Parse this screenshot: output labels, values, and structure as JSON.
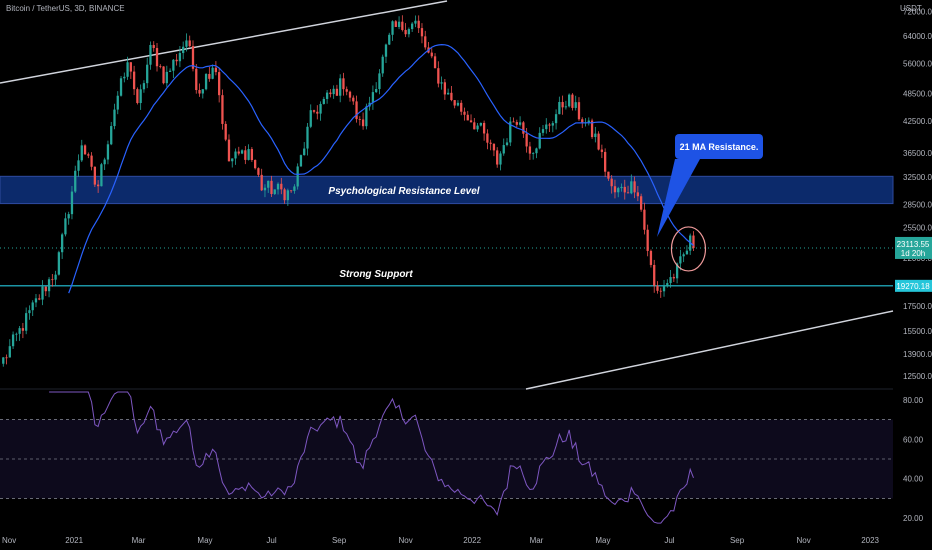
{
  "header": {
    "title": "Bitcoin / TetherUS, 3D, BINANCE",
    "quote_currency": "USDT"
  },
  "chart_data": [
    {
      "type": "candlestick",
      "scale": "log",
      "y_ticks": [
        "72000.00",
        "64000.00",
        "56000.00",
        "48500.00",
        "42500.00",
        "36500.00",
        "32500.00",
        "28500.00",
        "25500.00",
        "22000.00",
        "17500.00",
        "15500.00",
        "13900.00",
        "12500.00"
      ],
      "x_ticks": [
        "Nov",
        "2021",
        "Mar",
        "May",
        "Jul",
        "Sep",
        "Nov",
        "2022",
        "Mar",
        "May",
        "Jul",
        "Sep",
        "Nov",
        "2023"
      ],
      "ylim": [
        11800,
        76000
      ],
      "price_anchors": [
        {
          "date": "2020-10-28",
          "close": 13500
        },
        {
          "date": "2020-11-25",
          "close": 17500
        },
        {
          "date": "2020-12-16",
          "close": 21000
        },
        {
          "date": "2021-01-08",
          "close": 38500
        },
        {
          "date": "2021-01-22",
          "close": 30500
        },
        {
          "date": "2021-02-08",
          "close": 46500
        },
        {
          "date": "2021-02-21",
          "close": 57000
        },
        {
          "date": "2021-02-28",
          "close": 45000
        },
        {
          "date": "2021-03-13",
          "close": 61000
        },
        {
          "date": "2021-03-25",
          "close": 52000
        },
        {
          "date": "2021-04-14",
          "close": 63000
        },
        {
          "date": "2021-04-25",
          "close": 49000
        },
        {
          "date": "2021-05-10",
          "close": 57000
        },
        {
          "date": "2021-05-22",
          "close": 35000
        },
        {
          "date": "2021-06-10",
          "close": 37000
        },
        {
          "date": "2021-06-22",
          "close": 31000
        },
        {
          "date": "2021-07-20",
          "close": 30000
        },
        {
          "date": "2021-08-07",
          "close": 44000
        },
        {
          "date": "2021-09-06",
          "close": 51500
        },
        {
          "date": "2021-09-21",
          "close": 41000
        },
        {
          "date": "2021-10-20",
          "close": 66000
        },
        {
          "date": "2021-11-10",
          "close": 68000
        },
        {
          "date": "2021-11-28",
          "close": 54000
        },
        {
          "date": "2021-12-10",
          "close": 48000
        },
        {
          "date": "2022-01-08",
          "close": 41000
        },
        {
          "date": "2022-01-24",
          "close": 35000
        },
        {
          "date": "2022-02-10",
          "close": 44000
        },
        {
          "date": "2022-02-24",
          "close": 37000
        },
        {
          "date": "2022-03-29",
          "close": 47500
        },
        {
          "date": "2022-04-25",
          "close": 39000
        },
        {
          "date": "2022-05-10",
          "close": 30000
        },
        {
          "date": "2022-06-01",
          "close": 31500
        },
        {
          "date": "2022-06-18",
          "close": 18500
        },
        {
          "date": "2022-07-07",
          "close": 20500
        },
        {
          "date": "2022-07-20",
          "close": 23800
        },
        {
          "date": "2022-07-25",
          "close": 23113.55
        }
      ],
      "ma_label": "21 MA Resistance.",
      "zones": [
        {
          "label": "Psychological Resistance Level",
          "from": 28600,
          "to": 32600
        },
        {
          "label": "Strong Support",
          "level": 19270.18
        }
      ],
      "last_price": {
        "value": "23113.55",
        "countdown": "1d 20h"
      },
      "support_price_label": "19270.18",
      "colors": {
        "up": "#26a69a",
        "down": "#ef5350",
        "ma": "#2962ff",
        "zone": "#0c2a6b",
        "support": "#26c6da",
        "circle": "#ef9a9a"
      }
    },
    {
      "type": "line",
      "name": "RSI",
      "ylim": [
        15,
        85
      ],
      "y_ticks": [
        "80.00",
        "60.00",
        "40.00",
        "20.00"
      ],
      "levels": [
        70,
        50,
        30
      ],
      "color": "#7e57c2"
    }
  ]
}
